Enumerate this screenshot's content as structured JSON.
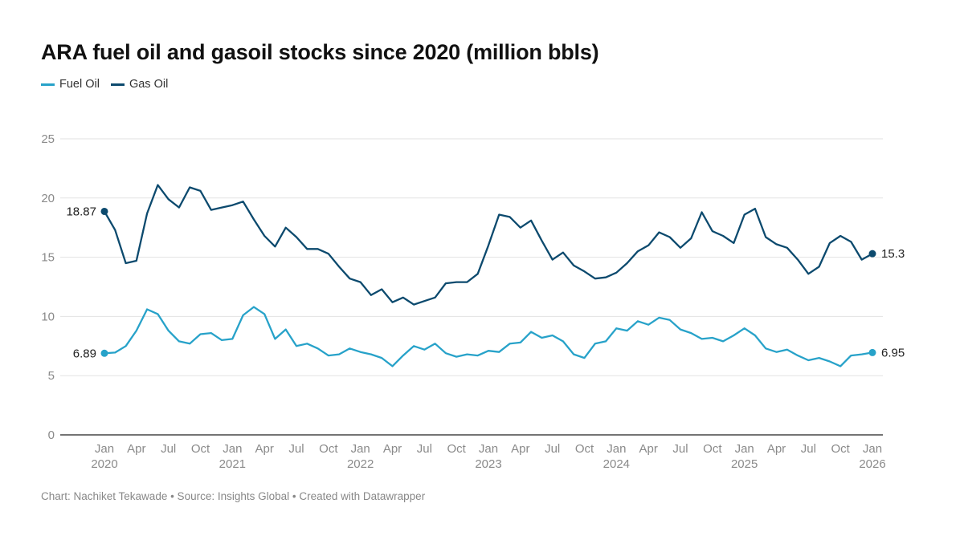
{
  "title": "ARA fuel oil and gasoil stocks since 2020 (million bbls)",
  "footer": "Chart: Nachiket Tekawade • Source: Insights Global • Created with Datawrapper",
  "chart_data": {
    "type": "line",
    "title": "ARA fuel oil and gasoil stocks since 2020 (million bbls)",
    "ylim": [
      0,
      25
    ],
    "y_ticks": [
      0,
      5,
      10,
      15,
      20,
      25
    ],
    "grid": true,
    "legend_placement": "top-left",
    "x_start": "2020-01",
    "x_end": "2026-01",
    "x_ticks": [
      {
        "date": "2020-01",
        "label": "Jan",
        "year": "2020"
      },
      {
        "date": "2020-04",
        "label": "Apr",
        "year": ""
      },
      {
        "date": "2020-07",
        "label": "Jul",
        "year": ""
      },
      {
        "date": "2020-10",
        "label": "Oct",
        "year": ""
      },
      {
        "date": "2021-01",
        "label": "Jan",
        "year": "2021"
      },
      {
        "date": "2021-04",
        "label": "Apr",
        "year": ""
      },
      {
        "date": "2021-07",
        "label": "Jul",
        "year": ""
      },
      {
        "date": "2021-10",
        "label": "Oct",
        "year": ""
      },
      {
        "date": "2022-01",
        "label": "Jan",
        "year": "2022"
      },
      {
        "date": "2022-04",
        "label": "Apr",
        "year": ""
      },
      {
        "date": "2022-07",
        "label": "Jul",
        "year": ""
      },
      {
        "date": "2022-10",
        "label": "Oct",
        "year": ""
      },
      {
        "date": "2023-01",
        "label": "Jan",
        "year": "2023"
      },
      {
        "date": "2023-04",
        "label": "Apr",
        "year": ""
      },
      {
        "date": "2023-07",
        "label": "Jul",
        "year": ""
      },
      {
        "date": "2023-10",
        "label": "Oct",
        "year": ""
      },
      {
        "date": "2024-01",
        "label": "Jan",
        "year": "2024"
      },
      {
        "date": "2024-04",
        "label": "Apr",
        "year": ""
      },
      {
        "date": "2024-07",
        "label": "Jul",
        "year": ""
      },
      {
        "date": "2024-10",
        "label": "Oct",
        "year": ""
      },
      {
        "date": "2025-01",
        "label": "Jan",
        "year": "2025"
      },
      {
        "date": "2025-04",
        "label": "Apr",
        "year": ""
      },
      {
        "date": "2025-07",
        "label": "Jul",
        "year": ""
      },
      {
        "date": "2025-10",
        "label": "Oct",
        "year": ""
      },
      {
        "date": "2026-01",
        "label": "Jan",
        "year": "2026"
      }
    ],
    "x": [
      "2020-01",
      "2020-02",
      "2020-03",
      "2020-04",
      "2020-05",
      "2020-06",
      "2020-07",
      "2020-08",
      "2020-09",
      "2020-10",
      "2020-11",
      "2020-12",
      "2021-01",
      "2021-02",
      "2021-03",
      "2021-04",
      "2021-05",
      "2021-06",
      "2021-07",
      "2021-08",
      "2021-09",
      "2021-10",
      "2021-11",
      "2021-12",
      "2022-01",
      "2022-02",
      "2022-03",
      "2022-04",
      "2022-05",
      "2022-06",
      "2022-07",
      "2022-08",
      "2022-09",
      "2022-10",
      "2022-11",
      "2022-12",
      "2023-01",
      "2023-02",
      "2023-03",
      "2023-04",
      "2023-05",
      "2023-06",
      "2023-07",
      "2023-08",
      "2023-09",
      "2023-10",
      "2023-11",
      "2023-12",
      "2024-01",
      "2024-02",
      "2024-03",
      "2024-04",
      "2024-05",
      "2024-06",
      "2024-07",
      "2024-08",
      "2024-09",
      "2024-10",
      "2024-11",
      "2024-12",
      "2025-01",
      "2025-02",
      "2025-03",
      "2025-04",
      "2025-05",
      "2025-06",
      "2025-07",
      "2025-08",
      "2025-09",
      "2025-10",
      "2025-11",
      "2025-12",
      "2026-01"
    ],
    "series": [
      {
        "name": "Fuel Oil",
        "color": "#27a2c9",
        "start_label": "6.89",
        "end_label": "6.95",
        "values": [
          6.89,
          6.95,
          7.5,
          8.8,
          10.6,
          10.2,
          8.8,
          7.9,
          7.7,
          8.5,
          8.6,
          8.0,
          8.1,
          10.1,
          10.8,
          10.2,
          8.1,
          8.9,
          7.5,
          7.7,
          7.3,
          6.7,
          6.8,
          7.3,
          7.0,
          6.8,
          6.5,
          5.8,
          6.7,
          7.5,
          7.2,
          7.7,
          6.9,
          6.6,
          6.8,
          6.7,
          7.1,
          7.0,
          7.7,
          7.8,
          8.7,
          8.2,
          8.4,
          7.9,
          6.8,
          6.5,
          7.7,
          7.9,
          9.0,
          8.8,
          9.6,
          9.3,
          9.9,
          9.7,
          8.9,
          8.6,
          8.1,
          8.2,
          7.9,
          8.4,
          9.0,
          8.4,
          7.3,
          7.0,
          7.2,
          6.7,
          6.3,
          6.5,
          6.2,
          5.8,
          6.7,
          6.8,
          6.95
        ]
      },
      {
        "name": "Gas Oil",
        "color": "#0c4a6e",
        "start_label": "18.87",
        "end_label": "15.3",
        "values": [
          18.87,
          17.3,
          14.5,
          14.7,
          18.7,
          21.1,
          19.9,
          19.2,
          20.9,
          20.6,
          19.0,
          19.2,
          19.4,
          19.7,
          18.2,
          16.8,
          15.9,
          17.5,
          16.7,
          15.7,
          15.7,
          15.3,
          14.2,
          13.2,
          12.9,
          11.8,
          12.3,
          11.2,
          11.6,
          11.0,
          11.3,
          11.6,
          12.8,
          12.9,
          12.9,
          13.6,
          16.0,
          18.6,
          18.4,
          17.5,
          18.1,
          16.4,
          14.8,
          15.4,
          14.3,
          13.8,
          13.2,
          13.3,
          13.7,
          14.5,
          15.5,
          16.0,
          17.1,
          16.7,
          15.8,
          16.6,
          18.8,
          17.2,
          16.8,
          16.2,
          18.6,
          19.1,
          16.7,
          16.1,
          15.8,
          14.8,
          13.6,
          14.2,
          16.2,
          16.8,
          16.3,
          14.8,
          15.3
        ]
      }
    ]
  }
}
